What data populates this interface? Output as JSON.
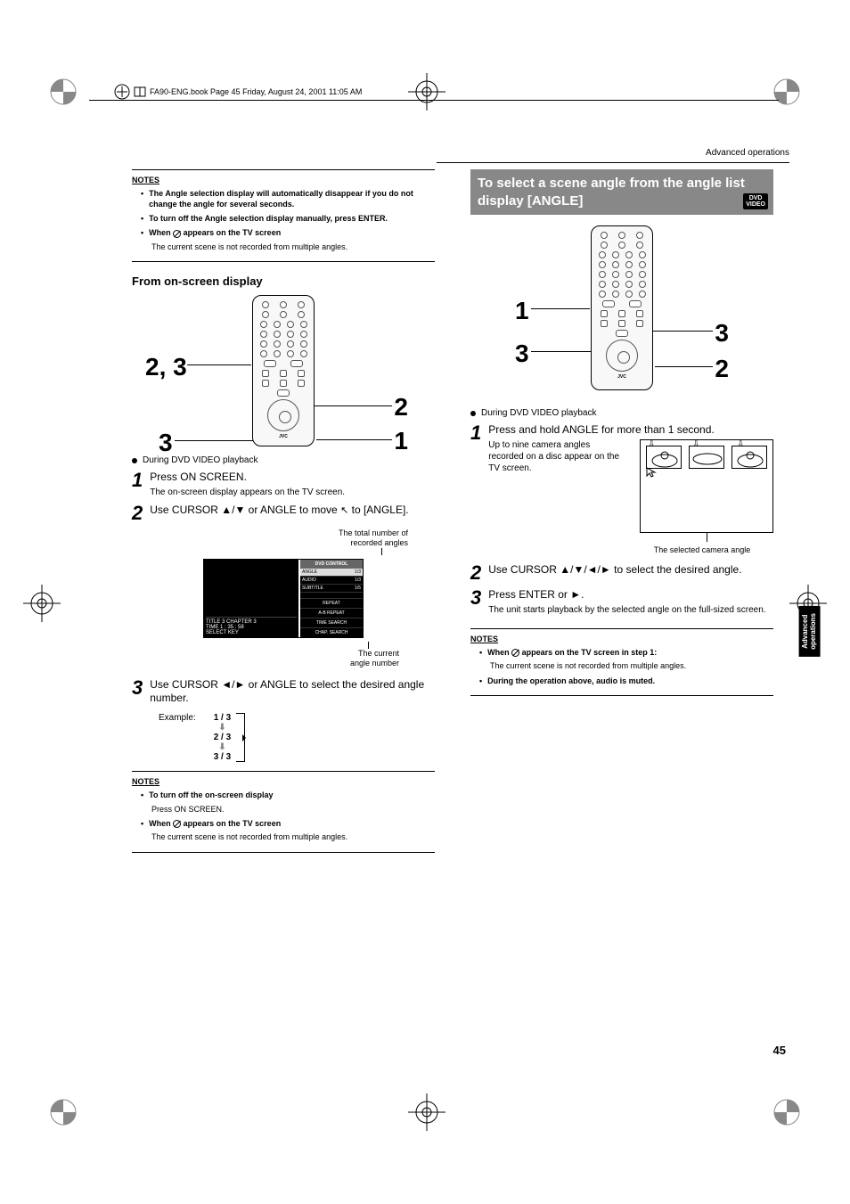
{
  "print": {
    "page_info": "FA90-ENG.book  Page 45  Friday, August 24, 2001  11:05 AM"
  },
  "header": "Advanced operations",
  "left": {
    "notes1": {
      "title": "NOTES",
      "items": [
        "The Angle selection display will automatically disappear if you do not change the angle for several seconds.",
        "To turn off the Angle selection display manually, press ENTER.",
        "When      appears on the TV screen"
      ],
      "sub": "The current scene is not recorded from multiple angles."
    },
    "section": "From on-screen display",
    "remote_callouts": {
      "a": "2, 3",
      "b": "3",
      "c": "2",
      "d": "1"
    },
    "playback": "During DVD VIDEO playback",
    "step1": {
      "main": "Press ON SCREEN.",
      "sub": "The on-screen display appears on the TV screen."
    },
    "step2": {
      "main": "Use CURSOR 5/∞ or ANGLE to move      to [ANGLE]."
    },
    "osd_top_annot": "The total number of\nrecorded angles",
    "osd_bot_annot": "The current\nangle number",
    "osd": {
      "title": "DVD CONTROL",
      "rows": [
        {
          "lab": "ANGLE",
          "val": "1/3",
          "hl": true
        },
        {
          "lab": "AUDIO",
          "val": "1/3"
        },
        {
          "lab": "SUBTITLE",
          "val": "1/5"
        }
      ],
      "menu": [
        "REPEAT",
        "A-B REPEAT",
        "TIME SEARCH",
        "CHAP. SEARCH"
      ],
      "left_info1": "TITLE  3  CHAPTER  3",
      "left_info2": "TIME  1 : 35 : 58",
      "left_sel": "SELECT         KEY"
    },
    "step3": {
      "main": "Use CURSOR 2/3 or ANGLE to select the desired angle number."
    },
    "example_label": "Example:",
    "example_seq": [
      "1 / 3",
      "2 / 3",
      "3 / 3"
    ],
    "notes2": {
      "title": "NOTES",
      "items": [
        "To turn off the on-screen display",
        "When      appears on the TV screen"
      ],
      "sub1": "Press ON SCREEN.",
      "sub2": "The current scene is not recorded from multiple angles."
    }
  },
  "right": {
    "heading": "To select a scene angle from the angle list display [ANGLE]",
    "dvd_badge": "DVD\nVIDEO",
    "remote_callouts": {
      "a": "1",
      "b": "3",
      "c": "3",
      "d": "2"
    },
    "playback": "During DVD VIDEO playback",
    "step1": {
      "main": "Press and hold ANGLE for more than 1 second.",
      "sub": "Up to nine camera angles recorded on a disc appear on the TV screen."
    },
    "angle_caption": "The selected camera angle",
    "step2": {
      "main": "Use CURSOR 5/∞/2/3 to select the desired angle."
    },
    "step3": {
      "main": "Press ENTER or 3.",
      "sub": "The unit starts playback by the selected angle on the full-sized screen."
    },
    "notes": {
      "title": "NOTES",
      "items": [
        "When      appears on the TV screen in step 1:",
        "During the operation above, audio is muted."
      ],
      "sub": "The current scene is not recorded from multiple angles."
    }
  },
  "side_tab": "Advanced\noperations",
  "page_num": "45"
}
